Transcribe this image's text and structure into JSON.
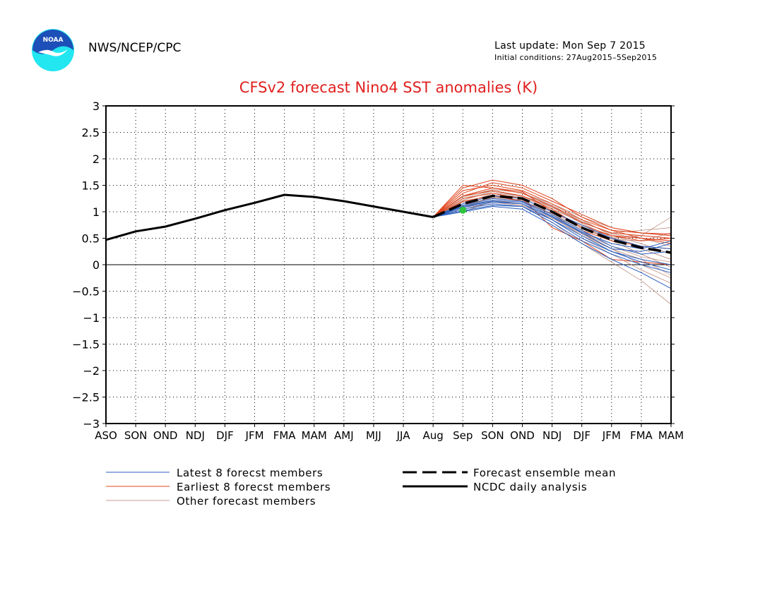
{
  "header": {
    "agency": "NWS/NCEP/CPC",
    "last_update": "Last update: Mon Sep  7 2015",
    "initial_conditions": "Initial conditions: 27Aug2015–5Sep2015",
    "logo_text": "NOAA"
  },
  "colors": {
    "title": "#e0201f",
    "latest": "#2a5fbf",
    "earliest": "#e0451e",
    "other": "#b47c6c",
    "analysis": "#000000",
    "obs_dot": "#2ec43c",
    "logo_blue": "#1d4fb8",
    "logo_cyan": "#22e6f0"
  },
  "chart_data": {
    "type": "line",
    "title": "CFSv2 forecast Nino4 SST anomalies (K)",
    "categories": [
      "ASO",
      "SON",
      "OND",
      "NDJ",
      "DJF",
      "JFM",
      "FMA",
      "MAM",
      "AMJ",
      "MJJ",
      "JJA",
      "Aug",
      "Sep",
      "SON",
      "OND",
      "NDJ",
      "DJF",
      "JFM",
      "FMA",
      "MAM"
    ],
    "ylim": [
      -3,
      3
    ],
    "yticks": [
      "3",
      "2.5",
      "2",
      "1.5",
      "1",
      "0.5",
      "0",
      "−0.5",
      "−1",
      "−1.5",
      "−2",
      "−2.5",
      "−3"
    ],
    "ytick_values": [
      3,
      2.5,
      2,
      1.5,
      1,
      0.5,
      0,
      -0.5,
      -1,
      -1.5,
      -2,
      -2.5,
      -3
    ],
    "grid": true,
    "ncdc_analysis": {
      "name": "NCDC daily analysis",
      "x_index": [
        0,
        1,
        2,
        3,
        4,
        5,
        6,
        7,
        8,
        9,
        10,
        11
      ],
      "values": [
        0.47,
        0.63,
        0.72,
        0.87,
        1.03,
        1.17,
        1.32,
        1.28,
        1.2,
        1.1,
        1.0,
        0.9
      ]
    },
    "ensemble_mean": {
      "name": "Forecast ensemble mean",
      "x_index": [
        11,
        12,
        13,
        14,
        15,
        16,
        17,
        18,
        19
      ],
      "values": [
        0.9,
        1.15,
        1.3,
        1.25,
        1.0,
        0.7,
        0.47,
        0.32,
        0.23
      ]
    },
    "observed_point": {
      "x_index": 12,
      "value": 1.03
    },
    "latest_members": {
      "name": "Latest 8 forecst members",
      "x_index": [
        11,
        12,
        13,
        14,
        15,
        16,
        17,
        18,
        19
      ],
      "members": [
        [
          0.9,
          1.05,
          1.15,
          1.1,
          0.8,
          0.45,
          0.2,
          0.0,
          -0.15
        ],
        [
          0.9,
          1.1,
          1.2,
          1.15,
          0.85,
          0.5,
          0.25,
          0.1,
          0.0
        ],
        [
          0.9,
          1.0,
          1.1,
          1.05,
          0.75,
          0.4,
          0.1,
          -0.15,
          -0.45
        ],
        [
          0.9,
          1.12,
          1.25,
          1.2,
          0.95,
          0.65,
          0.35,
          0.2,
          0.25
        ],
        [
          0.9,
          1.08,
          1.18,
          1.15,
          0.9,
          0.6,
          0.3,
          0.25,
          0.4
        ],
        [
          0.9,
          1.15,
          1.3,
          1.25,
          1.0,
          0.75,
          0.5,
          0.35,
          0.3
        ],
        [
          0.9,
          1.02,
          1.12,
          1.1,
          0.85,
          0.55,
          0.25,
          0.05,
          -0.1
        ],
        [
          0.9,
          1.1,
          1.22,
          1.18,
          0.92,
          0.62,
          0.4,
          0.3,
          0.45
        ]
      ]
    },
    "earliest_members": {
      "name": "Earliest 8 forecst members",
      "x_index": [
        11,
        12,
        13,
        14,
        15,
        16,
        17,
        18,
        19
      ],
      "members": [
        [
          0.9,
          1.5,
          1.45,
          1.35,
          1.1,
          0.8,
          0.6,
          0.55,
          0.5
        ],
        [
          0.9,
          1.35,
          1.55,
          1.45,
          1.2,
          0.95,
          0.7,
          0.6,
          0.55
        ],
        [
          0.9,
          1.3,
          1.4,
          1.3,
          1.05,
          0.7,
          0.55,
          0.5,
          0.45
        ],
        [
          0.9,
          1.25,
          1.35,
          1.25,
          0.7,
          0.45,
          0.1,
          0.05,
          0.0
        ],
        [
          0.9,
          1.4,
          1.5,
          1.4,
          1.15,
          0.85,
          0.65,
          0.6,
          0.58
        ],
        [
          0.9,
          1.2,
          1.3,
          1.2,
          0.95,
          0.65,
          0.45,
          0.35,
          0.3
        ],
        [
          0.9,
          1.45,
          1.6,
          1.5,
          1.25,
          0.9,
          0.65,
          0.5,
          0.4
        ],
        [
          0.9,
          1.3,
          1.45,
          1.38,
          1.0,
          0.75,
          0.55,
          0.45,
          0.5
        ]
      ]
    },
    "other_members": {
      "name": "Other forecast members",
      "x_index": [
        11,
        12,
        13,
        14,
        15,
        16,
        17,
        18,
        19
      ],
      "members": [
        [
          0.9,
          1.1,
          1.25,
          1.2,
          0.9,
          0.55,
          0.3,
          0.1,
          -0.2
        ],
        [
          0.9,
          1.2,
          1.3,
          1.25,
          1.0,
          0.7,
          0.5,
          0.55,
          0.9
        ],
        [
          0.9,
          1.05,
          1.15,
          1.1,
          0.8,
          0.4,
          0.05,
          -0.3,
          -0.75
        ],
        [
          0.9,
          1.15,
          1.35,
          1.3,
          1.05,
          0.8,
          0.6,
          0.65,
          0.7
        ],
        [
          0.9,
          1.0,
          1.2,
          1.15,
          0.85,
          0.5,
          0.2,
          -0.1,
          -0.35
        ],
        [
          0.9,
          1.25,
          1.4,
          1.3,
          1.1,
          0.85,
          0.55,
          0.4,
          0.2
        ],
        [
          0.9,
          1.12,
          1.28,
          1.22,
          0.95,
          0.6,
          0.35,
          0.15,
          0.05
        ],
        [
          0.9,
          1.3,
          1.45,
          1.35,
          1.15,
          0.9,
          0.7,
          0.6,
          0.55
        ],
        [
          0.9,
          1.08,
          1.22,
          1.15,
          0.9,
          0.6,
          0.4,
          0.3,
          0.1
        ],
        [
          0.9,
          1.18,
          1.32,
          1.28,
          1.02,
          0.72,
          0.45,
          0.2,
          -0.05
        ],
        [
          0.9,
          1.22,
          1.38,
          1.3,
          1.08,
          0.78,
          0.52,
          0.35,
          0.3
        ],
        [
          0.9,
          1.05,
          1.18,
          1.12,
          0.88,
          0.58,
          0.3,
          0.0,
          -0.25
        ],
        [
          0.9,
          1.15,
          1.26,
          1.2,
          0.97,
          0.68,
          0.48,
          0.45,
          0.6
        ],
        [
          0.9,
          1.28,
          1.42,
          1.36,
          1.12,
          0.82,
          0.58,
          0.5,
          0.35
        ]
      ]
    },
    "legend": {
      "placement": "bottom",
      "entries": [
        "Latest 8 forecst members",
        "Earliest 8 forecst members",
        "Other forecast members",
        "Forecast ensemble mean",
        "NCDC daily analysis"
      ]
    }
  }
}
